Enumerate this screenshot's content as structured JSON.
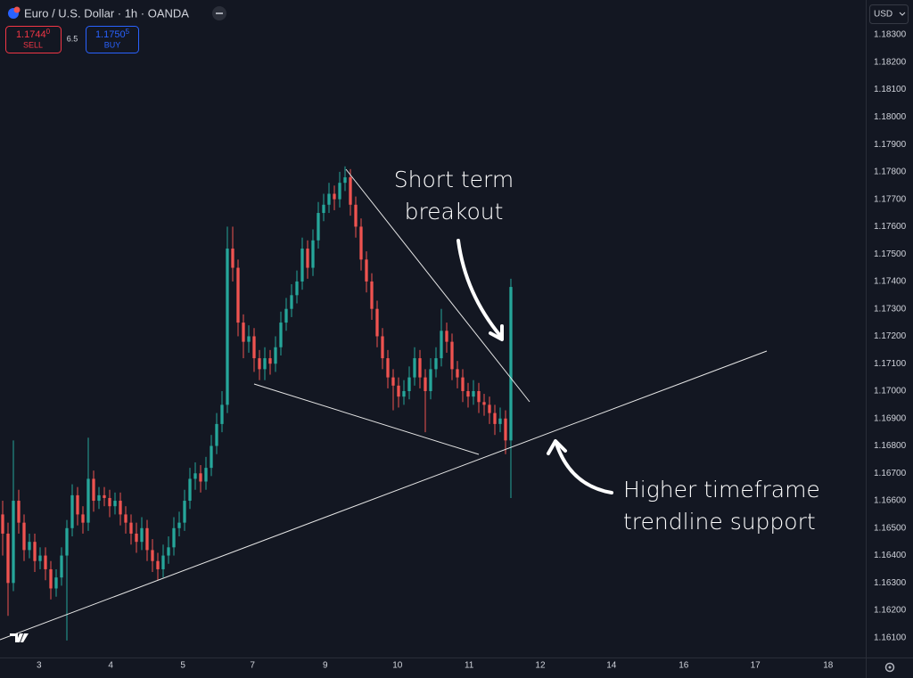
{
  "header": {
    "title": "Euro / U.S. Dollar · 1h · OANDA",
    "sell": {
      "price": "1.1744",
      "pip": "0",
      "label": "SELL"
    },
    "spread": "6.5",
    "buy": {
      "price": "1.1750",
      "pip": "5",
      "label": "BUY"
    },
    "currency": "USD"
  },
  "chart_data": {
    "type": "candlestick",
    "up_color": "#26a69a",
    "down_color": "#ef5350",
    "grid": false,
    "annotations": [
      [
        "Short term",
        "breakout"
      ],
      [
        "Higher timeframe",
        "trendline support"
      ]
    ],
    "xlim": [
      -0.5,
      161.17
    ],
    "xticks": [
      {
        "value": 6.8,
        "label": "3"
      },
      {
        "value": 20.2,
        "label": "4"
      },
      {
        "value": 33.7,
        "label": "5"
      },
      {
        "value": 46.7,
        "label": "7"
      },
      {
        "value": 60.3,
        "label": "9"
      },
      {
        "value": 73.8,
        "label": "10"
      },
      {
        "value": 87.2,
        "label": "11"
      },
      {
        "value": 100.5,
        "label": "12"
      },
      {
        "value": 113.8,
        "label": "14"
      },
      {
        "value": 127.3,
        "label": "16"
      },
      {
        "value": 140.7,
        "label": "17"
      },
      {
        "value": 154.3,
        "label": "18"
      }
    ],
    "ylim": [
      1.16028,
      1.18427
    ],
    "yticks": [
      {
        "value": 1.161,
        "label": "1.16100"
      },
      {
        "value": 1.162,
        "label": "1.16200"
      },
      {
        "value": 1.163,
        "label": "1.16300"
      },
      {
        "value": 1.164,
        "label": "1.16400"
      },
      {
        "value": 1.165,
        "label": "1.16500"
      },
      {
        "value": 1.166,
        "label": "1.16600"
      },
      {
        "value": 1.167,
        "label": "1.16700"
      },
      {
        "value": 1.168,
        "label": "1.16800"
      },
      {
        "value": 1.169,
        "label": "1.16900"
      },
      {
        "value": 1.17,
        "label": "1.17000"
      },
      {
        "value": 1.171,
        "label": "1.17100"
      },
      {
        "value": 1.172,
        "label": "1.17200"
      },
      {
        "value": 1.173,
        "label": "1.17300"
      },
      {
        "value": 1.174,
        "label": "1.17400"
      },
      {
        "value": 1.175,
        "label": "1.17500"
      },
      {
        "value": 1.176,
        "label": "1.17600"
      },
      {
        "value": 1.177,
        "label": "1.17700"
      },
      {
        "value": 1.178,
        "label": "1.17800"
      },
      {
        "value": 1.179,
        "label": "1.17900"
      },
      {
        "value": 1.18,
        "label": "1.18000"
      },
      {
        "value": 1.181,
        "label": "1.18100"
      },
      {
        "value": 1.182,
        "label": "1.18200"
      },
      {
        "value": 1.183,
        "label": "1.18300"
      }
    ],
    "ohlc": [
      [
        1.1655,
        1.166,
        1.164,
        1.1648
      ],
      [
        1.1648,
        1.1652,
        1.1618,
        1.163
      ],
      [
        1.163,
        1.1682,
        1.1627,
        1.166
      ],
      [
        1.166,
        1.1664,
        1.1648,
        1.1652
      ],
      [
        1.1652,
        1.1655,
        1.1638,
        1.1642
      ],
      [
        1.1642,
        1.1648,
        1.1639,
        1.1645
      ],
      [
        1.1645,
        1.1648,
        1.1634,
        1.1638
      ],
      [
        1.1638,
        1.1643,
        1.1635,
        1.164
      ],
      [
        1.164,
        1.1643,
        1.1631,
        1.1635
      ],
      [
        1.1635,
        1.1638,
        1.1624,
        1.1628
      ],
      [
        1.1628,
        1.1635,
        1.1625,
        1.1632
      ],
      [
        1.1632,
        1.1643,
        1.1629,
        1.164
      ],
      [
        1.164,
        1.1653,
        1.1609,
        1.165
      ],
      [
        1.165,
        1.1666,
        1.1647,
        1.1662
      ],
      [
        1.1662,
        1.1665,
        1.1651,
        1.1655
      ],
      [
        1.1655,
        1.1658,
        1.1648,
        1.1652
      ],
      [
        1.1652,
        1.1683,
        1.1649,
        1.1668
      ],
      [
        1.1668,
        1.1671,
        1.1656,
        1.166
      ],
      [
        1.166,
        1.1665,
        1.1657,
        1.1662
      ],
      [
        1.1662,
        1.1665,
        1.1658,
        1.1661
      ],
      [
        1.1661,
        1.1664,
        1.1654,
        1.1658
      ],
      [
        1.1658,
        1.1663,
        1.1655,
        1.166
      ],
      [
        1.166,
        1.1663,
        1.1651,
        1.1655
      ],
      [
        1.1655,
        1.1658,
        1.1648,
        1.1652
      ],
      [
        1.1652,
        1.1655,
        1.1644,
        1.1648
      ],
      [
        1.1648,
        1.1652,
        1.1641,
        1.1645
      ],
      [
        1.1645,
        1.1654,
        1.1642,
        1.165
      ],
      [
        1.165,
        1.1653,
        1.1638,
        1.1642
      ],
      [
        1.1642,
        1.1646,
        1.1634,
        1.1638
      ],
      [
        1.1638,
        1.1641,
        1.1631,
        1.1635
      ],
      [
        1.1635,
        1.1644,
        1.1632,
        1.164
      ],
      [
        1.164,
        1.1647,
        1.1637,
        1.1643
      ],
      [
        1.1643,
        1.1654,
        1.164,
        1.165
      ],
      [
        1.165,
        1.1656,
        1.1647,
        1.1652
      ],
      [
        1.1652,
        1.1664,
        1.1649,
        1.166
      ],
      [
        1.166,
        1.1672,
        1.1657,
        1.1668
      ],
      [
        1.1668,
        1.1674,
        1.1664,
        1.167
      ],
      [
        1.167,
        1.1673,
        1.1663,
        1.1667
      ],
      [
        1.1667,
        1.1676,
        1.1664,
        1.1672
      ],
      [
        1.1672,
        1.1684,
        1.1669,
        1.168
      ],
      [
        1.168,
        1.1692,
        1.1677,
        1.1688
      ],
      [
        1.1688,
        1.17,
        1.1685,
        1.1695
      ],
      [
        1.1695,
        1.176,
        1.1692,
        1.1752
      ],
      [
        1.1752,
        1.176,
        1.174,
        1.1745
      ],
      [
        1.1745,
        1.1748,
        1.172,
        1.1725
      ],
      [
        1.1725,
        1.1728,
        1.1712,
        1.1718
      ],
      [
        1.1718,
        1.1724,
        1.1714,
        1.172
      ],
      [
        1.172,
        1.1723,
        1.1707,
        1.1712
      ],
      [
        1.1712,
        1.1715,
        1.1704,
        1.1708
      ],
      [
        1.1708,
        1.1716,
        1.1704,
        1.1712
      ],
      [
        1.1712,
        1.1715,
        1.1706,
        1.171
      ],
      [
        1.171,
        1.172,
        1.1707,
        1.1716
      ],
      [
        1.1716,
        1.1729,
        1.1713,
        1.1725
      ],
      [
        1.1725,
        1.1734,
        1.1722,
        1.173
      ],
      [
        1.173,
        1.1739,
        1.1727,
        1.1735
      ],
      [
        1.1735,
        1.1744,
        1.1732,
        1.174
      ],
      [
        1.174,
        1.1756,
        1.1737,
        1.1752
      ],
      [
        1.1752,
        1.1755,
        1.1741,
        1.1745
      ],
      [
        1.1745,
        1.1759,
        1.1742,
        1.1755
      ],
      [
        1.1755,
        1.1769,
        1.1752,
        1.1765
      ],
      [
        1.1765,
        1.1772,
        1.1762,
        1.1768
      ],
      [
        1.1768,
        1.1776,
        1.1765,
        1.1772
      ],
      [
        1.1772,
        1.1775,
        1.1766,
        1.177
      ],
      [
        1.177,
        1.178,
        1.1767,
        1.1776
      ],
      [
        1.1776,
        1.1782,
        1.1773,
        1.1778
      ],
      [
        1.1778,
        1.1781,
        1.1764,
        1.1768
      ],
      [
        1.1768,
        1.1771,
        1.1756,
        1.176
      ],
      [
        1.176,
        1.1763,
        1.1744,
        1.1748
      ],
      [
        1.1748,
        1.1751,
        1.1736,
        1.174
      ],
      [
        1.174,
        1.1743,
        1.1726,
        1.173
      ],
      [
        1.173,
        1.1733,
        1.1716,
        1.172
      ],
      [
        1.172,
        1.1723,
        1.1708,
        1.1712
      ],
      [
        1.1712,
        1.1715,
        1.1701,
        1.1705
      ],
      [
        1.1705,
        1.1708,
        1.1693,
        1.1702
      ],
      [
        1.1702,
        1.1705,
        1.1694,
        1.1698
      ],
      [
        1.1698,
        1.1704,
        1.1695,
        1.17
      ],
      [
        1.17,
        1.1709,
        1.1697,
        1.1705
      ],
      [
        1.1705,
        1.1716,
        1.1702,
        1.1712
      ],
      [
        1.1712,
        1.1715,
        1.1701,
        1.1705
      ],
      [
        1.1705,
        1.1708,
        1.1685,
        1.17
      ],
      [
        1.17,
        1.1712,
        1.1697,
        1.1708
      ],
      [
        1.1708,
        1.1716,
        1.1705,
        1.1712
      ],
      [
        1.1712,
        1.173,
        1.1709,
        1.1722
      ],
      [
        1.1722,
        1.1725,
        1.1714,
        1.1718
      ],
      [
        1.1718,
        1.1721,
        1.1704,
        1.1708
      ],
      [
        1.1708,
        1.1711,
        1.1701,
        1.1705
      ],
      [
        1.1705,
        1.1708,
        1.1696,
        1.17
      ],
      [
        1.17,
        1.1703,
        1.1694,
        1.1698
      ],
      [
        1.1698,
        1.1704,
        1.1695,
        1.17
      ],
      [
        1.17,
        1.1703,
        1.1692,
        1.1696
      ],
      [
        1.1696,
        1.1699,
        1.1691,
        1.1695
      ],
      [
        1.1695,
        1.1698,
        1.1688,
        1.1692
      ],
      [
        1.1692,
        1.1695,
        1.1684,
        1.1688
      ],
      [
        1.1688,
        1.1694,
        1.1685,
        1.169
      ],
      [
        1.169,
        1.1693,
        1.1677,
        1.1682
      ],
      [
        1.1682,
        1.1741,
        1.1661,
        1.1738
      ]
    ]
  }
}
